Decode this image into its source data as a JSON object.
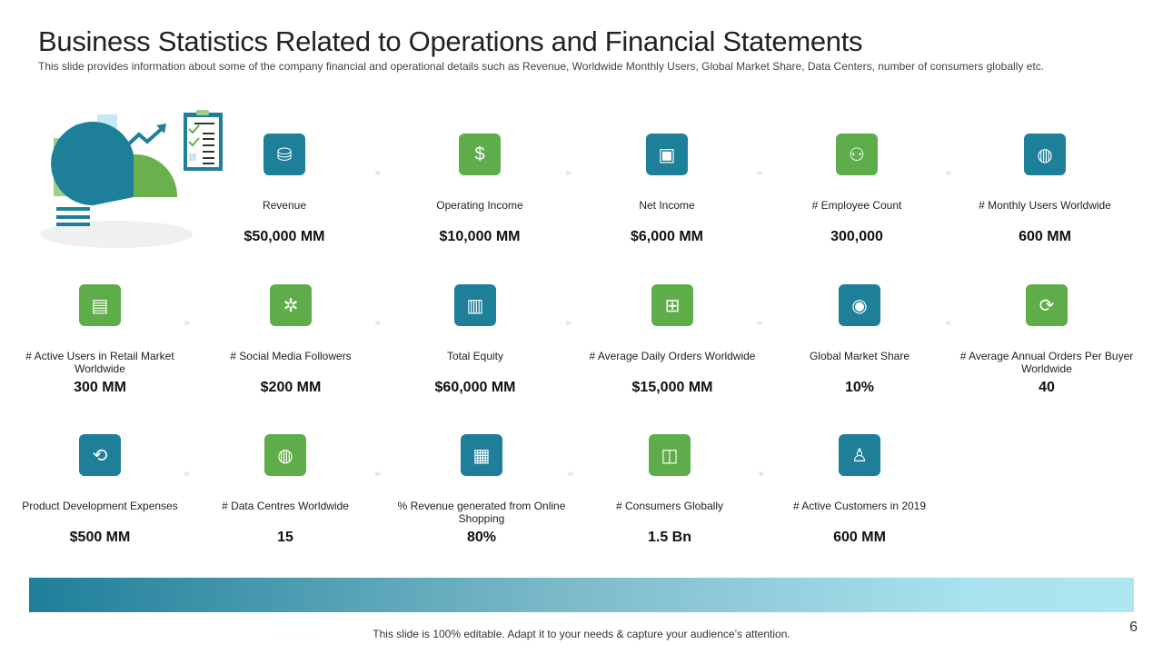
{
  "header": {
    "title": "Business Statistics Related to Operations and Financial Statements",
    "subtitle": "This slide provides  information  about some of the company financial and operational details such as Revenue,  Worldwide Monthly Users, Global Market Share, Data Centers, number of consumers globally etc."
  },
  "colors": {
    "teal": "#1e7f99",
    "green": "#5fad4a"
  },
  "stats": [
    {
      "label": "Revenue",
      "value": "$50,000 MM",
      "icon": "coins-icon",
      "color": "teal"
    },
    {
      "label": "Operating Income",
      "value": "$10,000 MM",
      "icon": "money-hand-icon",
      "color": "green"
    },
    {
      "label": "Net Income",
      "value": "$6,000 MM",
      "icon": "wallet-icon",
      "color": "teal"
    },
    {
      "label": "# Employee Count",
      "value": "300,000",
      "icon": "people-icon",
      "color": "green"
    },
    {
      "label": "# Monthly Users Worldwide",
      "value": "600 MM",
      "icon": "globe-icon",
      "color": "teal"
    },
    {
      "label": "# Active Users in Retail Market Worldwide",
      "value": "300 MM",
      "icon": "retail-icon",
      "color": "green"
    },
    {
      "label": "# Social Media Followers",
      "value": "$200 MM",
      "icon": "network-icon",
      "color": "green"
    },
    {
      "label": "Total Equity",
      "value": "$60,000 MM",
      "icon": "chart-icon",
      "color": "teal"
    },
    {
      "label": "# Average Daily Orders Worldwide",
      "value": "$15,000 MM",
      "icon": "basket-icon",
      "color": "green"
    },
    {
      "label": "Global Market Share",
      "value": "10%",
      "icon": "globe-dollar-icon",
      "color": "teal"
    },
    {
      "label": "# Average Annual Orders Per Buyer Worldwide",
      "value": "40",
      "icon": "cycle-icon",
      "color": "green"
    },
    {
      "label": "Product Development Expenses",
      "value": "$500 MM",
      "icon": "product-cycle-icon",
      "color": "teal"
    },
    {
      "label": "# Data Centres Worldwide",
      "value": "15",
      "icon": "data-centre-icon",
      "color": "green"
    },
    {
      "label": "% Revenue generated from Online Shopping",
      "value": "80%",
      "icon": "browser-cart-icon",
      "color": "teal"
    },
    {
      "label": "# Consumers Globally",
      "value": "1.5 Bn",
      "icon": "shopping-bag-icon",
      "color": "green"
    },
    {
      "label": "# Active Customers in 2019",
      "value": "600 MM",
      "icon": "customer-icon",
      "color": "teal"
    }
  ],
  "footer": {
    "text": "This slide is 100% editable. Adapt it to your needs & capture your audience’s attention.",
    "page": "6"
  }
}
